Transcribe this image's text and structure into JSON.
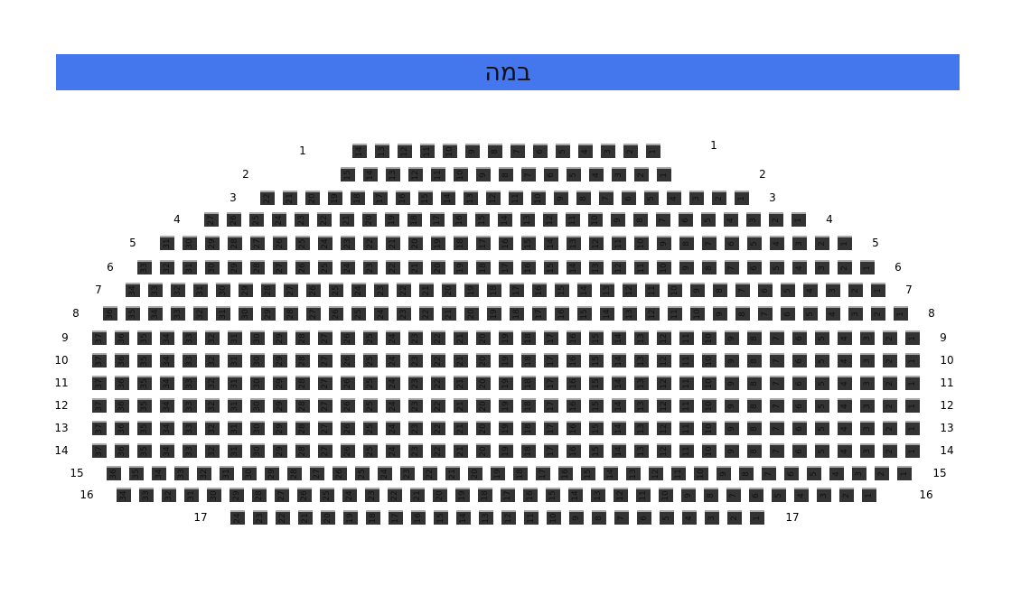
{
  "stage": {
    "label": "במה",
    "color": "#4476ED"
  },
  "seat_color": "#333333",
  "rows": [
    {
      "label": "1",
      "seats": 14
    },
    {
      "label": "2",
      "seats": 15
    },
    {
      "label": "3",
      "seats": 22
    },
    {
      "label": "4",
      "seats": 27
    },
    {
      "label": "5",
      "seats": 31
    },
    {
      "label": "6",
      "seats": 33
    },
    {
      "label": "7",
      "seats": 34
    },
    {
      "label": "8",
      "seats": 36
    },
    {
      "label": "9",
      "seats": 37
    },
    {
      "label": "10",
      "seats": 37
    },
    {
      "label": "11",
      "seats": 37
    },
    {
      "label": "12",
      "seats": 37
    },
    {
      "label": "13",
      "seats": 37
    },
    {
      "label": "14",
      "seats": 37
    },
    {
      "label": "15",
      "seats": 36
    },
    {
      "label": "16",
      "seats": 34
    },
    {
      "label": "17",
      "seats": 24
    }
  ]
}
